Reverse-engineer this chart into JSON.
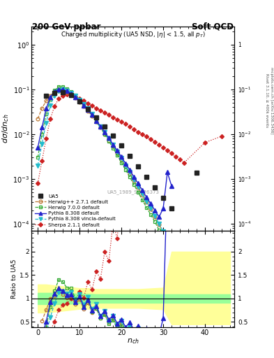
{
  "title_left": "200 GeV ppbar",
  "title_right": "Soft QCD",
  "plot_title": "Charged multiplicity (UA5 NSD, |\\eta| < 1.5, all p_{T})",
  "ylabel_main": "d\\sigma/dn_{ch}",
  "ylabel_ratio": "Ratio to UA5",
  "xlabel": "n_{ch}",
  "right_label_top": "Rivet 3.1.10, ≥ 400k events",
  "right_label_bot": "mcplots.cern.ch [arXiv:1306.3436]",
  "watermark": "UA5_1989_S1926373",
  "UA5_x": [
    2,
    4,
    6,
    8,
    10,
    12,
    14,
    16,
    18,
    20,
    22,
    24,
    26,
    28,
    30,
    32,
    38
  ],
  "UA5_y": [
    0.073,
    0.082,
    0.085,
    0.074,
    0.054,
    0.036,
    0.024,
    0.015,
    0.0092,
    0.0056,
    0.0033,
    0.0019,
    0.0011,
    0.00065,
    0.00038,
    0.00022,
    0.00135
  ],
  "herwig_x": [
    0,
    1,
    2,
    3,
    4,
    5,
    6,
    7,
    8,
    9,
    10,
    11,
    12,
    13,
    14,
    15,
    16,
    17,
    18,
    19,
    20,
    21,
    22,
    23,
    24,
    25,
    26,
    27,
    28,
    29,
    30,
    31,
    32,
    33,
    34,
    35
  ],
  "herwig_y": [
    0.022,
    0.038,
    0.055,
    0.073,
    0.087,
    0.094,
    0.093,
    0.086,
    0.077,
    0.065,
    0.053,
    0.042,
    0.033,
    0.025,
    0.019,
    0.014,
    0.01,
    0.0073,
    0.0053,
    0.0038,
    0.0027,
    0.0019,
    0.0013,
    0.00092,
    0.00064,
    0.00044,
    0.0003,
    0.00021,
    0.00014,
    9.5e-05,
    6.4e-05,
    4.2e-05,
    2.8e-05,
    1.8e-05,
    1.2e-05,
    7.8e-06
  ],
  "herwig7_x": [
    0,
    1,
    2,
    3,
    4,
    5,
    6,
    7,
    8,
    9,
    10,
    11,
    12,
    13,
    14,
    15,
    16,
    17,
    18,
    19,
    20,
    21,
    22,
    23,
    24,
    25,
    26,
    27,
    28,
    29,
    30,
    31,
    32,
    33,
    34,
    35
  ],
  "herwig7_y": [
    0.003,
    0.01,
    0.028,
    0.06,
    0.095,
    0.115,
    0.115,
    0.104,
    0.09,
    0.074,
    0.059,
    0.046,
    0.035,
    0.026,
    0.019,
    0.014,
    0.0099,
    0.007,
    0.0049,
    0.0034,
    0.0023,
    0.0016,
    0.0011,
    0.00074,
    0.0005,
    0.00034,
    0.00023,
    0.00016,
    0.00011,
    7.2e-05,
    4.8e-05,
    3.2e-05,
    2.1e-05,
    1.4e-05,
    9e-06,
    5.8e-06
  ],
  "pythia8_x": [
    0,
    1,
    2,
    3,
    4,
    5,
    6,
    7,
    8,
    9,
    10,
    11,
    12,
    13,
    14,
    15,
    16,
    17,
    18,
    19,
    20,
    21,
    22,
    23,
    24,
    25,
    26,
    27,
    28,
    29,
    30,
    31,
    32
  ],
  "pythia8_y": [
    0.005,
    0.014,
    0.037,
    0.067,
    0.09,
    0.1,
    0.099,
    0.091,
    0.08,
    0.068,
    0.056,
    0.044,
    0.035,
    0.027,
    0.02,
    0.015,
    0.011,
    0.0082,
    0.0059,
    0.0043,
    0.0031,
    0.0022,
    0.0016,
    0.0011,
    0.00079,
    0.00056,
    0.00039,
    0.00028,
    0.0002,
    0.00014,
    0.00022,
    0.0014,
    0.0007
  ],
  "pythia8v_x": [
    0,
    1,
    2,
    3,
    4,
    5,
    6,
    7,
    8,
    9,
    10,
    11,
    12,
    13,
    14,
    15,
    16,
    17,
    18,
    19,
    20,
    21,
    22,
    23,
    24,
    25,
    26,
    27,
    28,
    29,
    30,
    31,
    32,
    33,
    34,
    35
  ],
  "pythia8v_y": [
    0.002,
    0.006,
    0.018,
    0.044,
    0.073,
    0.093,
    0.098,
    0.094,
    0.084,
    0.072,
    0.059,
    0.047,
    0.037,
    0.028,
    0.021,
    0.015,
    0.011,
    0.0079,
    0.0057,
    0.0041,
    0.0029,
    0.002,
    0.0014,
    0.00097,
    0.00068,
    0.00047,
    0.00032,
    0.00022,
    0.00015,
    0.0001,
    6.8e-05,
    4.6e-05,
    3.1e-05,
    2.1e-05,
    1.4e-05,
    9.3e-06
  ],
  "sherpa_x": [
    0,
    1,
    2,
    3,
    4,
    5,
    6,
    7,
    8,
    9,
    10,
    11,
    12,
    13,
    14,
    15,
    16,
    17,
    18,
    19,
    20,
    21,
    22,
    23,
    24,
    25,
    26,
    27,
    28,
    29,
    30,
    31,
    32,
    33,
    34,
    35,
    40,
    44
  ],
  "sherpa_y": [
    0.0008,
    0.0025,
    0.008,
    0.022,
    0.042,
    0.062,
    0.073,
    0.076,
    0.074,
    0.069,
    0.062,
    0.055,
    0.049,
    0.043,
    0.038,
    0.034,
    0.03,
    0.027,
    0.024,
    0.021,
    0.019,
    0.017,
    0.015,
    0.013,
    0.011,
    0.01,
    0.0088,
    0.0077,
    0.0067,
    0.0058,
    0.005,
    0.0043,
    0.0037,
    0.0031,
    0.0027,
    0.0023,
    0.0065,
    0.009
  ],
  "colors": {
    "UA5": "#222222",
    "herwig": "#bb7733",
    "herwig7": "#33aa33",
    "pythia8": "#2222cc",
    "pythia8v": "#22bbcc",
    "sherpa": "#cc2222"
  },
  "ylim_main": [
    7e-05,
    2.5
  ],
  "ylim_ratio": [
    0.38,
    2.45
  ],
  "xlim": [
    -1.5,
    47
  ],
  "band_x": [
    0,
    2,
    4,
    6,
    8,
    10,
    12,
    14,
    16,
    18,
    20,
    22,
    24,
    26,
    28,
    30,
    32,
    33,
    46
  ],
  "band_y_lo_grn": [
    0.88,
    0.88,
    0.88,
    0.88,
    0.89,
    0.9,
    0.9,
    0.91,
    0.91,
    0.91,
    0.91,
    0.91,
    0.91,
    0.91,
    0.91,
    0.91,
    0.91,
    0.91,
    0.91
  ],
  "band_y_hi_grn": [
    1.12,
    1.12,
    1.12,
    1.12,
    1.11,
    1.1,
    1.1,
    1.09,
    1.09,
    1.09,
    1.09,
    1.09,
    1.09,
    1.09,
    1.09,
    1.09,
    1.09,
    1.09,
    1.09
  ],
  "band_y_lo_yel": [
    0.7,
    0.7,
    0.72,
    0.74,
    0.76,
    0.78,
    0.78,
    0.8,
    0.8,
    0.8,
    0.8,
    0.8,
    0.8,
    0.79,
    0.78,
    0.77,
    0.45,
    0.45,
    0.45
  ],
  "band_y_hi_yel": [
    1.3,
    1.3,
    1.28,
    1.26,
    1.24,
    1.22,
    1.22,
    1.2,
    1.2,
    1.2,
    1.2,
    1.2,
    1.2,
    1.21,
    1.22,
    1.23,
    2.0,
    2.0,
    2.0
  ]
}
